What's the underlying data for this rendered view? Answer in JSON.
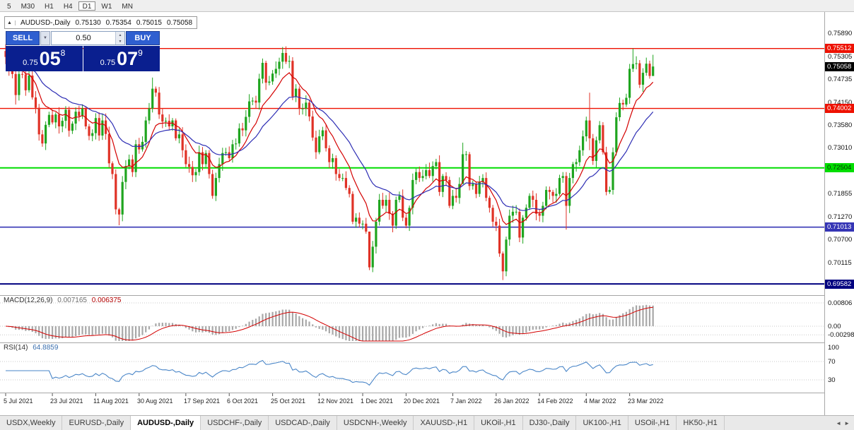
{
  "toolbar": {
    "timeframes": [
      {
        "label": "5",
        "active": false
      },
      {
        "label": "M30",
        "active": false
      },
      {
        "label": "H1",
        "active": false
      },
      {
        "label": "H4",
        "active": false
      },
      {
        "label": "D1",
        "active": true
      },
      {
        "label": "W1",
        "active": false
      },
      {
        "label": "MN",
        "active": false
      }
    ]
  },
  "chart_header": {
    "symbol": "AUDUSD-,Daily",
    "open": "0.75130",
    "high": "0.75354",
    "low": "0.75015",
    "close": "0.75058"
  },
  "trade_panel": {
    "sell_label": "SELL",
    "buy_label": "BUY",
    "volume": "0.50",
    "sell_price_prefix": "0.75",
    "sell_price_big": "05",
    "sell_price_sup": "8",
    "buy_price_prefix": "0.75",
    "buy_price_big": "07",
    "buy_price_sup": "9"
  },
  "icons": {
    "collapse": "▲",
    "dropdown": "▼",
    "spin_up": "▲",
    "spin_down": "▼",
    "scroll_left": "◄",
    "scroll_right": "►"
  },
  "price_scale": {
    "labels": [
      {
        "text": "0.75890",
        "price": 0.7589
      },
      {
        "text": "0.75305",
        "price": 0.75305
      },
      {
        "text": "0.74735",
        "price": 0.74735
      },
      {
        "text": "0.74150",
        "price": 0.7415
      },
      {
        "text": "0.73580",
        "price": 0.7358
      },
      {
        "text": "0.73010",
        "price": 0.7301
      },
      {
        "text": "0.71855",
        "price": 0.71855
      },
      {
        "text": "0.71270",
        "price": 0.7127
      },
      {
        "text": "0.70700",
        "price": 0.707
      },
      {
        "text": "0.70115",
        "price": 0.70115
      }
    ],
    "badges": [
      {
        "text": "0.75512",
        "price": 0.75512,
        "bg": "#ee1100",
        "fg": "#ffffff"
      },
      {
        "text": "0.75058",
        "price": 0.75058,
        "bg": "#000000",
        "fg": "#ffffff"
      },
      {
        "text": "0.74002",
        "price": 0.74002,
        "bg": "#ee1100",
        "fg": "#ffffff"
      },
      {
        "text": "0.72504",
        "price": 0.72504,
        "bg": "#00dd00",
        "fg": "#063306"
      },
      {
        "text": "0.71013",
        "price": 0.71013,
        "bg": "#3535b5",
        "fg": "#ffffff"
      },
      {
        "text": "0.69582",
        "price": 0.69582,
        "bg": "#000080",
        "fg": "#ffffff"
      }
    ]
  },
  "indicators": {
    "macd": {
      "label": "MACD(12,26,9)",
      "value_main": "0.007165",
      "value_signal": "0.006375",
      "fast": 12,
      "slow": 26,
      "signal": 9,
      "axis": [
        {
          "text": "0.00806",
          "value": 0.00806
        },
        {
          "text": "0.00",
          "value": 0
        },
        {
          "text": "-0.00298",
          "value": -0.00298
        }
      ]
    },
    "rsi": {
      "label": "RSI(14)",
      "value": "64.8859",
      "period": 14,
      "axis": [
        {
          "text": "100",
          "value": 100
        },
        {
          "text": "70",
          "value": 70
        },
        {
          "text": "30",
          "value": 30
        }
      ],
      "levels": [
        70,
        30
      ]
    }
  },
  "tabs": {
    "items": [
      {
        "label": "USDX,Weekly",
        "active": false
      },
      {
        "label": "EURUSD-,Daily",
        "active": false
      },
      {
        "label": "AUDUSD-,Daily",
        "active": true
      },
      {
        "label": "USDCHF-,Daily",
        "active": false
      },
      {
        "label": "USDCAD-,Daily",
        "active": false
      },
      {
        "label": "USDCNH-,Weekly",
        "active": false
      },
      {
        "label": "XAUUSD-,H1",
        "active": false
      },
      {
        "label": "UKOil-,H1",
        "active": false
      },
      {
        "label": "DJ30-,Daily",
        "active": false
      },
      {
        "label": "UK100-,H1",
        "active": false
      },
      {
        "label": "USOil-,H1",
        "active": false
      },
      {
        "label": "HK50-,H1",
        "active": false
      }
    ]
  },
  "chart_data": {
    "type": "candlestick",
    "title": "AUDUSD-,Daily",
    "ohlc_current": {
      "open": 0.7513,
      "high": 0.75354,
      "low": 0.75015,
      "close": 0.75058
    },
    "y_range": [
      0.693,
      0.762
    ],
    "levels": [
      {
        "price": 0.75512,
        "color": "#ee1100",
        "width": 1.4
      },
      {
        "price": 0.74002,
        "color": "#ee1100",
        "width": 1.4
      },
      {
        "price": 0.72504,
        "color": "#00dd00",
        "width": 2
      },
      {
        "price": 0.71013,
        "color": "#3535b5",
        "width": 1.6
      },
      {
        "price": 0.69582,
        "color": "#000080",
        "width": 2
      }
    ],
    "date_ticks": [
      {
        "label": "5 Jul 2021",
        "index": 0
      },
      {
        "label": "23 Jul 2021",
        "index": 14
      },
      {
        "label": "11 Aug 2021",
        "index": 27
      },
      {
        "label": "30 Aug 2021",
        "index": 40
      },
      {
        "label": "17 Sep 2021",
        "index": 54
      },
      {
        "label": "6 Oct 2021",
        "index": 67
      },
      {
        "label": "25 Oct 2021",
        "index": 80
      },
      {
        "label": "12 Nov 2021",
        "index": 94
      },
      {
        "label": "1 Dec 2021",
        "index": 107
      },
      {
        "label": "20 Dec 2021",
        "index": 120
      },
      {
        "label": "7 Jan 2022",
        "index": 134
      },
      {
        "label": "26 Jan 2022",
        "index": 147
      },
      {
        "label": "14 Feb 2022",
        "index": 160
      },
      {
        "label": "4 Mar 2022",
        "index": 174
      },
      {
        "label": "23 Mar 2022",
        "index": 187
      }
    ],
    "closes": [
      0.753,
      0.7494,
      0.7487,
      0.7434,
      0.7487,
      0.7486,
      0.7446,
      0.7483,
      0.7428,
      0.7402,
      0.7335,
      0.7312,
      0.7359,
      0.7384,
      0.7365,
      0.7385,
      0.7355,
      0.7369,
      0.7397,
      0.7344,
      0.7362,
      0.7392,
      0.7381,
      0.74,
      0.7355,
      0.7331,
      0.7338,
      0.7376,
      0.7332,
      0.737,
      0.7336,
      0.7262,
      0.7235,
      0.7146,
      0.7133,
      0.7215,
      0.7255,
      0.7272,
      0.724,
      0.731,
      0.7297,
      0.7316,
      0.737,
      0.74,
      0.745,
      0.744,
      0.7385,
      0.7367,
      0.7369,
      0.7355,
      0.737,
      0.7325,
      0.7335,
      0.7295,
      0.726,
      0.7253,
      0.7232,
      0.724,
      0.729,
      0.726,
      0.7288,
      0.7235,
      0.718,
      0.7225,
      0.726,
      0.7288,
      0.729,
      0.7275,
      0.731,
      0.7312,
      0.735,
      0.7345,
      0.7379,
      0.7418,
      0.742,
      0.7415,
      0.7475,
      0.7515,
      0.7465,
      0.7468,
      0.7488,
      0.75,
      0.7518,
      0.754,
      0.7518,
      0.752,
      0.743,
      0.745,
      0.74,
      0.74,
      0.7415,
      0.738,
      0.7327,
      0.729,
      0.733,
      0.7345,
      0.73,
      0.7265,
      0.7275,
      0.7235,
      0.7225,
      0.7225,
      0.72,
      0.7185,
      0.7115,
      0.7125,
      0.711,
      0.711,
      0.709,
      0.7,
      0.7052,
      0.7115,
      0.717,
      0.7155,
      0.717,
      0.7135,
      0.7105,
      0.717,
      0.718,
      0.7125,
      0.7105,
      0.715,
      0.722,
      0.724,
      0.7225,
      0.723,
      0.7245,
      0.723,
      0.7255,
      0.7265,
      0.719,
      0.723,
      0.722,
      0.7155,
      0.718,
      0.7175,
      0.721,
      0.7285,
      0.7285,
      0.7205,
      0.721,
      0.7185,
      0.7215,
      0.7225,
      0.7175,
      0.715,
      0.7115,
      0.7105,
      0.7035,
      0.699,
      0.707,
      0.713,
      0.714,
      0.714,
      0.7075,
      0.7125,
      0.715,
      0.718,
      0.717,
      0.7135,
      0.713,
      0.7155,
      0.7195,
      0.719,
      0.718,
      0.7185,
      0.7225,
      0.723,
      0.7155,
      0.7225,
      0.726,
      0.7265,
      0.7295,
      0.733,
      0.737,
      0.7325,
      0.7268,
      0.732,
      0.7358,
      0.729,
      0.719,
      0.7195,
      0.729,
      0.7378,
      0.7414,
      0.741,
      0.7427,
      0.75,
      0.7512,
      0.7514,
      0.746,
      0.749,
      0.7513,
      0.7482,
      0.75058
    ],
    "wick_overrides": {
      "0": [
        0.7562,
        0.7512
      ],
      "3": [
        0.7495,
        0.741
      ],
      "34": [
        0.715,
        0.7106
      ],
      "44": [
        0.7478,
        0.739
      ],
      "83": [
        0.7555,
        0.75
      ],
      "109": [
        0.7058,
        0.6993
      ],
      "137": [
        0.7314,
        0.7238
      ],
      "149": [
        0.704,
        0.6968
      ],
      "168": [
        0.724,
        0.7095
      ],
      "175": [
        0.744,
        0.7295
      ],
      "188": [
        0.7551,
        0.7492
      ],
      "194": [
        0.75354,
        0.75015
      ]
    },
    "colors": {
      "up": "#1fa51f",
      "down": "#e03226",
      "ma_fast": "#d40000",
      "ma_slow": "#2d2db4",
      "macd_hist": "#a8a8a8",
      "macd_signal": "#d40000",
      "rsi": "#4a86c8"
    }
  }
}
